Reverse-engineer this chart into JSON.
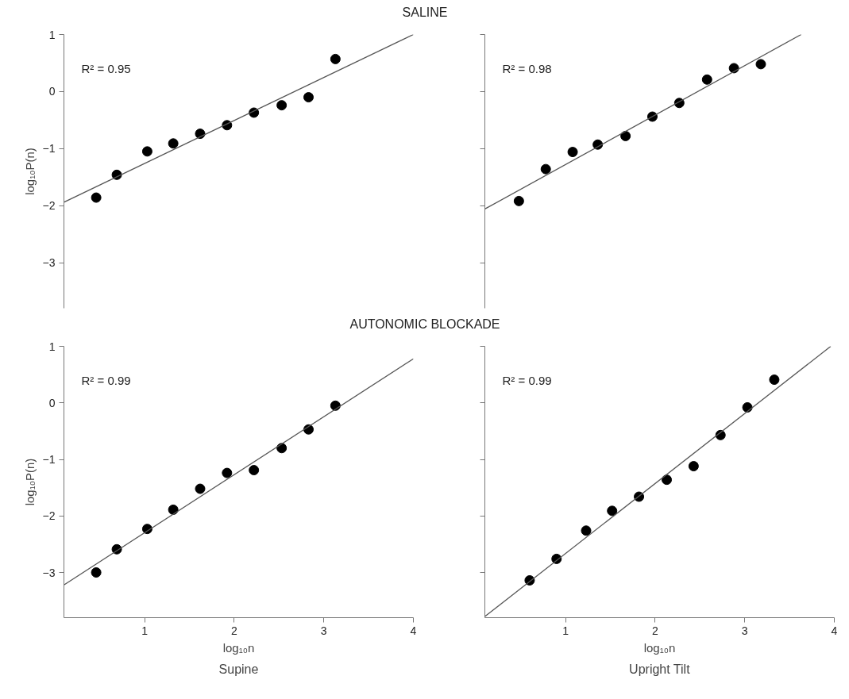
{
  "chart_data": [
    {
      "type": "scatter",
      "title": "SALINE",
      "ylabel": "log₁₀P(n)",
      "xlim": [
        0.1,
        4
      ],
      "xticks": [
        1,
        2,
        3,
        4
      ],
      "ylim": [
        -3.8,
        1
      ],
      "yticks": [
        -3,
        -2,
        -1,
        0,
        1
      ],
      "tick_labels": "y",
      "grid": false,
      "marker": "circle",
      "annotations": [
        "R² = 0.95"
      ],
      "series": [
        {
          "color": "#000000",
          "x": [
            0.46,
            0.69,
            1.03,
            1.32,
            1.62,
            1.92,
            2.22,
            2.53,
            2.83,
            3.13
          ],
          "values": [
            -1.86,
            -1.46,
            -1.05,
            -0.91,
            -0.74,
            -0.59,
            -0.37,
            -0.24,
            -0.1,
            0.57
          ]
        },
        {
          "type": "line",
          "marker": "none",
          "color": "#555555",
          "x": [
            0.1,
            4.0
          ],
          "values": [
            -1.94,
            1.0
          ]
        }
      ]
    },
    {
      "type": "scatter",
      "xlim": [
        0.1,
        4
      ],
      "xticks": [
        1,
        2,
        3,
        4
      ],
      "ylim": [
        -3.8,
        1
      ],
      "yticks": [
        -3,
        -2,
        -1,
        0,
        1
      ],
      "tick_labels": false,
      "grid": false,
      "marker": "circle",
      "annotations": [
        "R² = 0.98"
      ],
      "series": [
        {
          "color": "#000000",
          "x": [
            0.48,
            0.78,
            1.08,
            1.36,
            1.67,
            1.97,
            2.27,
            2.58,
            2.88,
            3.18
          ],
          "values": [
            -1.92,
            -1.36,
            -1.06,
            -0.93,
            -0.78,
            -0.44,
            -0.2,
            0.21,
            0.41,
            0.48
          ]
        },
        {
          "type": "line",
          "marker": "none",
          "color": "#555555",
          "x": [
            0.1,
            3.63
          ],
          "values": [
            -2.06,
            1.0
          ]
        }
      ]
    },
    {
      "type": "scatter",
      "title": "AUTONOMIC BLOCKADE",
      "xlabel": "log₁₀n",
      "ylabel": "log₁₀P(n)",
      "xlim": [
        0.1,
        4
      ],
      "xticks": [
        1,
        2,
        3,
        4
      ],
      "ylim": [
        -3.8,
        1
      ],
      "yticks": [
        -3,
        -2,
        -1,
        0,
        1
      ],
      "grid": false,
      "marker": "circle",
      "annotations": [
        "R² = 0.99",
        "Supine"
      ],
      "series": [
        {
          "color": "#000000",
          "x": [
            0.46,
            0.69,
            1.03,
            1.32,
            1.62,
            1.92,
            2.22,
            2.53,
            2.83,
            3.13
          ],
          "values": [
            -3.0,
            -2.59,
            -2.23,
            -1.89,
            -1.52,
            -1.24,
            -1.19,
            -0.8,
            -0.47,
            -0.05
          ]
        },
        {
          "type": "line",
          "marker": "none",
          "color": "#555555",
          "x": [
            0.1,
            4.0
          ],
          "values": [
            -3.22,
            0.78
          ]
        }
      ]
    },
    {
      "type": "scatter",
      "xlabel": "log₁₀n",
      "xlim": [
        0.1,
        4
      ],
      "xticks": [
        1,
        2,
        3,
        4
      ],
      "ylim": [
        -3.8,
        1
      ],
      "yticks": [
        -3,
        -2,
        -1,
        0,
        1
      ],
      "tick_labels": "x",
      "grid": false,
      "marker": "circle",
      "annotations": [
        "R² = 0.99",
        "Upright Tilt"
      ],
      "series": [
        {
          "color": "#000000",
          "x": [
            0.6,
            0.9,
            1.23,
            1.52,
            1.82,
            2.13,
            2.43,
            2.73,
            3.03,
            3.33
          ],
          "values": [
            -3.14,
            -2.76,
            -2.26,
            -1.91,
            -1.66,
            -1.36,
            -1.12,
            -0.57,
            -0.08,
            0.41
          ]
        },
        {
          "type": "line",
          "marker": "none",
          "color": "#555555",
          "x": [
            0.1,
            3.96
          ],
          "values": [
            -3.78,
            1.0
          ]
        }
      ]
    }
  ]
}
